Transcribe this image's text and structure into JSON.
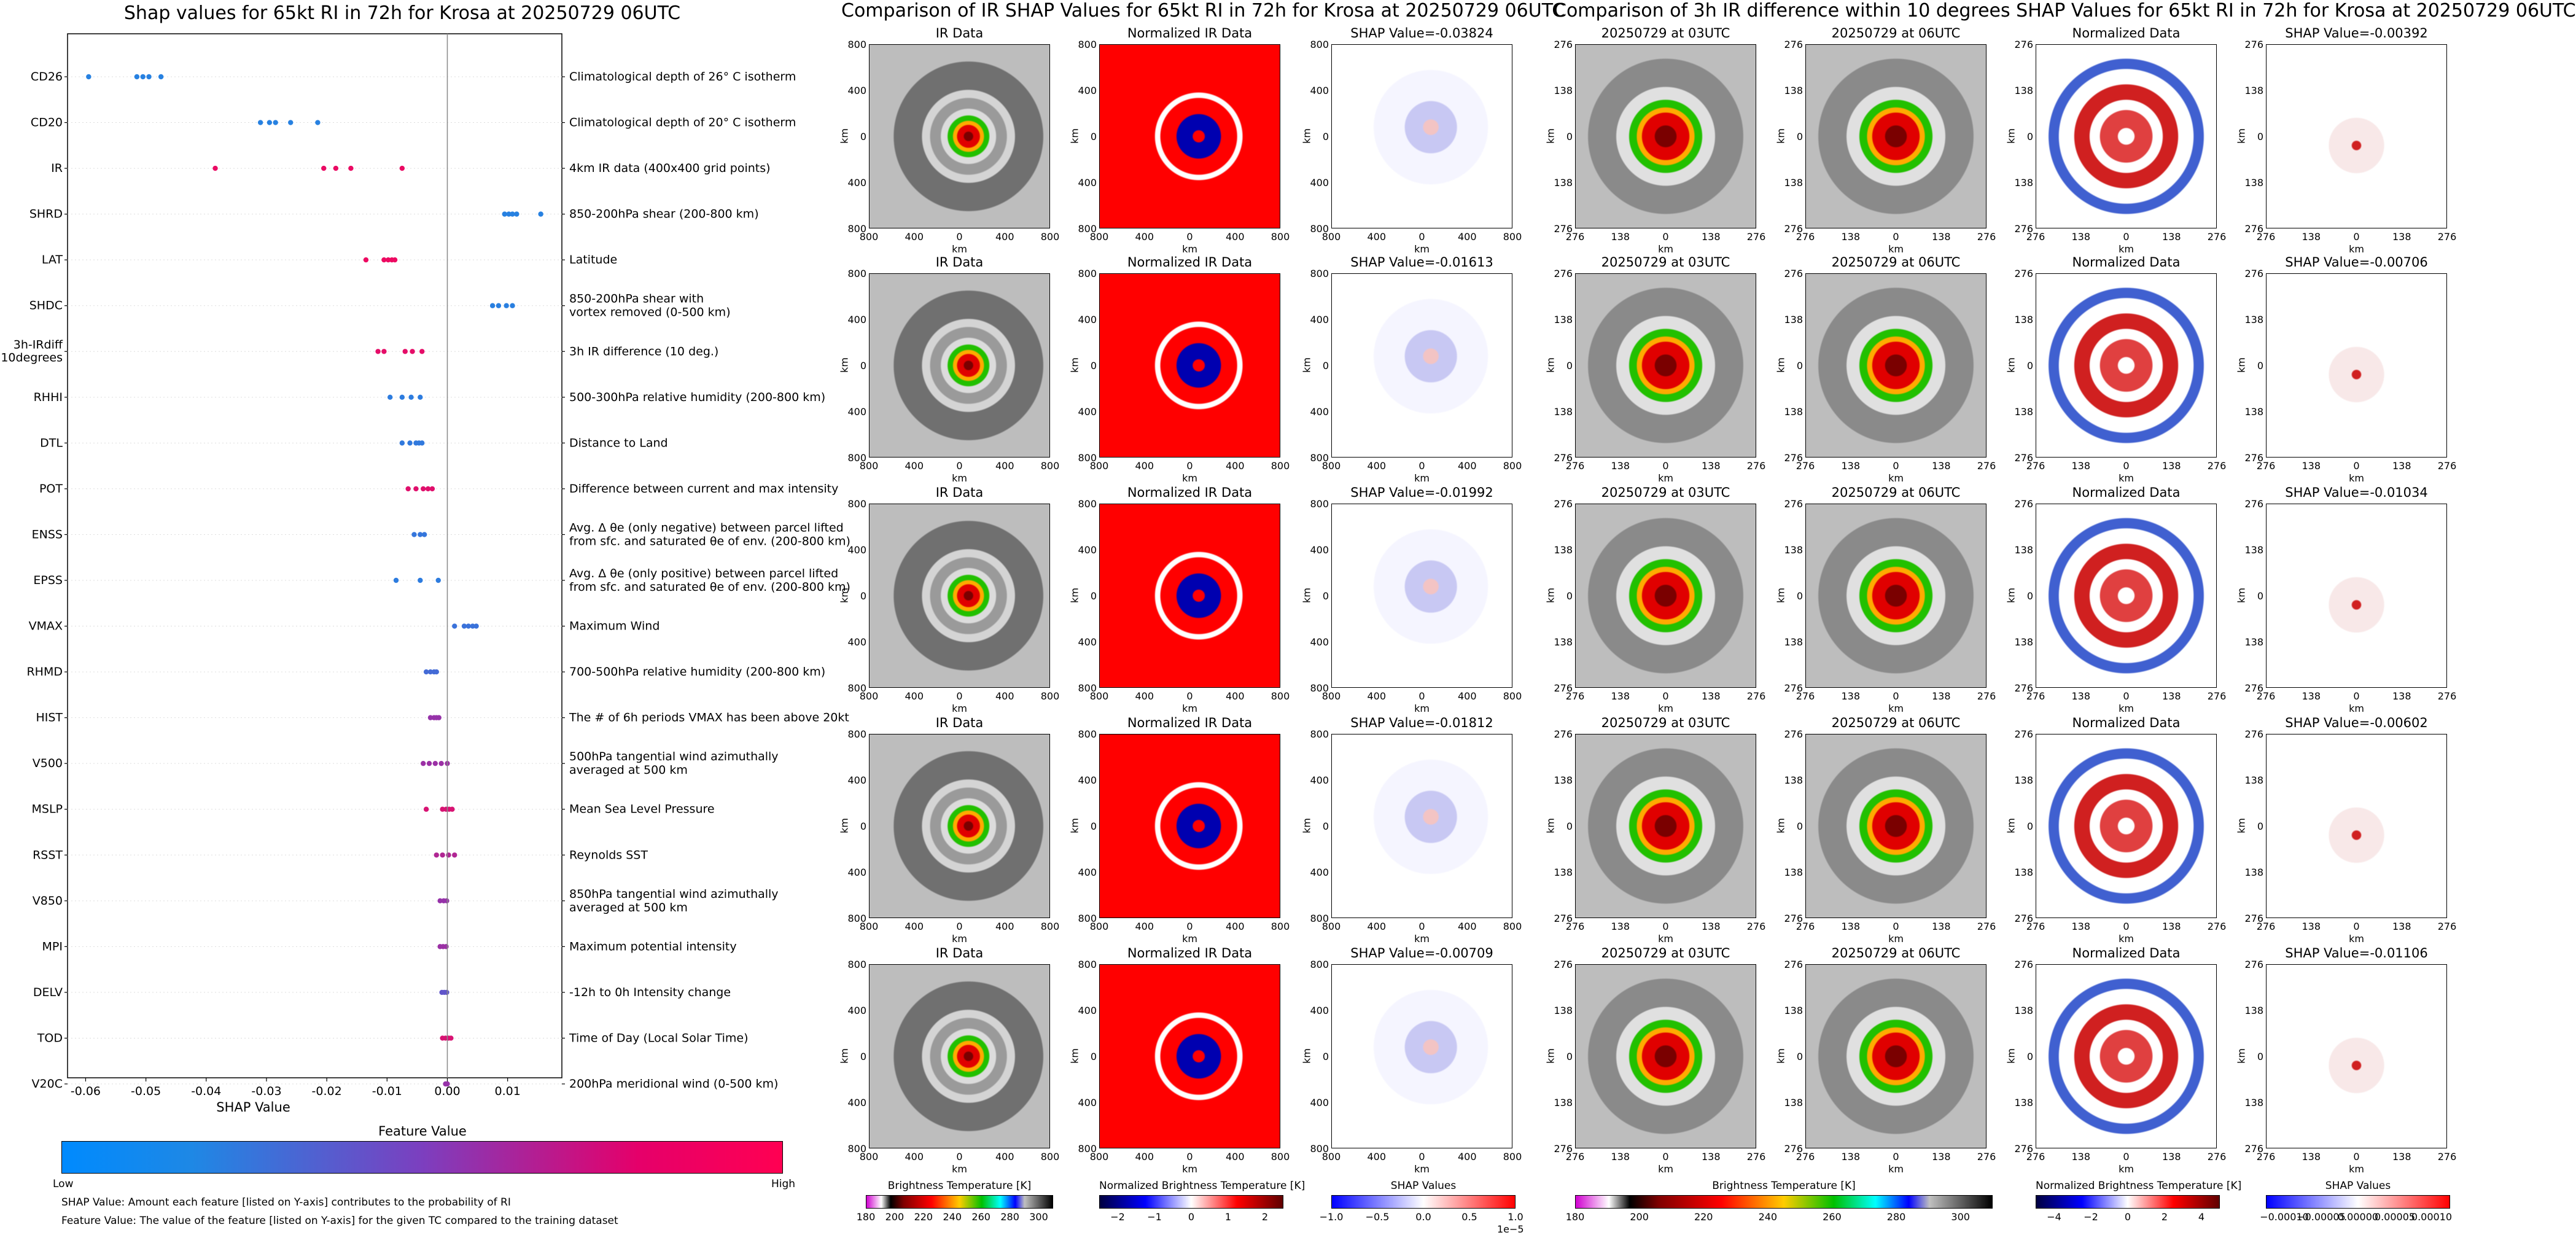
{
  "shap_summary": {
    "title": "Shap values for 65kt RI in 72h for Krosa at 20250729 06UTC",
    "xlabel": "SHAP Value",
    "colorbar_title": "Feature Value",
    "colorbar_low": "Low",
    "colorbar_high": "High",
    "footnote1": "SHAP Value: Amount each feature [listed on Y-axis] contributes to the probability of RI",
    "footnote2": "Feature Value: The value of the feature [listed on Y-axis] for the given TC compared to the training dataset",
    "colors": {
      "low": "#1e88e5",
      "mid": "#7c3fbf",
      "high": "#ff0052"
    }
  },
  "chart_data": [
    {
      "type": "scatter",
      "title": "Shap values for 65kt RI in 72h for Krosa at 20250729 06UTC",
      "xlabel": "SHAP Value",
      "xlim": [
        -0.063,
        0.019
      ],
      "xticks": [
        "-0.06",
        "-0.05",
        "-0.04",
        "-0.03",
        "-0.02",
        "-0.01",
        "0.00",
        "0.01"
      ],
      "xtick_values": [
        -0.06,
        -0.05,
        -0.04,
        -0.03,
        -0.02,
        -0.01,
        0.0,
        0.01
      ],
      "features": [
        {
          "name": "CD26",
          "desc": "Climatological depth of 26° C isotherm",
          "points": [
            -0.0595,
            -0.0515,
            -0.0505,
            -0.0495,
            -0.0475
          ],
          "fv": 0.05
        },
        {
          "name": "CD20",
          "desc": "Climatological depth of 20° C isotherm",
          "points": [
            -0.031,
            -0.0295,
            -0.0285,
            -0.026,
            -0.0215
          ],
          "fv": 0.05
        },
        {
          "name": "IR",
          "desc": "4km IR data (400x400 grid points)",
          "points": [
            -0.0385,
            -0.0205,
            -0.0185,
            -0.016,
            -0.0075
          ],
          "fv": 0.92
        },
        {
          "name": "SHRD",
          "desc": "850-200hPa shear (200-800 km)",
          "points": [
            0.0095,
            0.0102,
            0.0108,
            0.0115,
            0.0155
          ],
          "fv": 0.05
        },
        {
          "name": "LAT",
          "desc": "Latitude",
          "points": [
            -0.0135,
            -0.0105,
            -0.0098,
            -0.0092,
            -0.0087
          ],
          "fv": 0.93
        },
        {
          "name": "SHDC",
          "desc": "850-200hPa shear with\nvortex removed (0-500 km)",
          "points": [
            0.0075,
            0.0085,
            0.0098,
            0.0108
          ],
          "fv": 0.06
        },
        {
          "name": "3h-IRdiff\n10degrees",
          "desc": "3h IR difference (10 deg.)",
          "points": [
            -0.0115,
            -0.0105,
            -0.007,
            -0.0058,
            -0.0042
          ],
          "fv": 0.9
        },
        {
          "name": "RHHI",
          "desc": "500-300hPa relative humidity (200-800 km)",
          "points": [
            -0.0095,
            -0.0075,
            -0.006,
            -0.0045
          ],
          "fv": 0.08
        },
        {
          "name": "DTL",
          "desc": "Distance to Land",
          "points": [
            -0.0075,
            -0.0062,
            -0.0052,
            -0.0047,
            -0.0042
          ],
          "fv": 0.1
        },
        {
          "name": "POT",
          "desc": "Difference between current and max intensity",
          "points": [
            -0.0065,
            -0.0052,
            -0.004,
            -0.0032,
            -0.0025
          ],
          "fv": 0.88
        },
        {
          "name": "ENSS",
          "desc": "Avg. Δ θe (only negative) between parcel lifted\nfrom sfc. and saturated θe of env. (200-800 km)",
          "points": [
            -0.0055,
            -0.0045,
            -0.0038
          ],
          "fv": 0.12
        },
        {
          "name": "EPSS",
          "desc": "Avg. Δ θe (only positive) between parcel lifted\nfrom sfc. and saturated θe of env. (200-800 km)",
          "points": [
            -0.0085,
            -0.0045,
            -0.0015
          ],
          "fv": 0.08
        },
        {
          "name": "VMAX",
          "desc": "Maximum Wind",
          "points": [
            0.0012,
            0.0028,
            0.0035,
            0.0042,
            0.0048
          ],
          "fv": 0.15
        },
        {
          "name": "RHMD",
          "desc": "700-500hPa relative humidity (200-800 km)",
          "points": [
            -0.0035,
            -0.0028,
            -0.0022,
            -0.0018
          ],
          "fv": 0.2
        },
        {
          "name": "HIST",
          "desc": "The # of 6h periods VMAX has been above 20kt",
          "points": [
            -0.0028,
            -0.0022,
            -0.0018,
            -0.0014
          ],
          "fv": 0.6
        },
        {
          "name": "V500",
          "desc": "500hPa tangential wind azimuthally\naveraged at 500 km",
          "points": [
            -0.004,
            -0.003,
            -0.002,
            -0.001,
            0.0
          ],
          "fv": 0.62
        },
        {
          "name": "MSLP",
          "desc": "Mean Sea Level Pressure",
          "points": [
            -0.0035,
            -0.0008,
            -0.0002,
            0.0003,
            0.0008
          ],
          "fv": 0.85
        },
        {
          "name": "RSST",
          "desc": "Reynolds SST",
          "points": [
            -0.0018,
            -0.0008,
            0.0002,
            0.0012
          ],
          "fv": 0.7
        },
        {
          "name": "V850",
          "desc": "850hPa tangential wind azimuthally\naveraged at 500 km",
          "points": [
            -0.0012,
            -0.0006,
            -0.0001
          ],
          "fv": 0.6
        },
        {
          "name": "MPI",
          "desc": "Maximum potential intensity",
          "points": [
            -0.0012,
            -0.0007,
            -0.0002
          ],
          "fv": 0.62
        },
        {
          "name": "DELV",
          "desc": "-12h to 0h Intensity change",
          "points": [
            -0.0009,
            -0.0005,
            -0.0001
          ],
          "fv": 0.35
        },
        {
          "name": "TOD",
          "desc": "Time of Day (Local Solar Time)",
          "points": [
            -0.0008,
            -0.0003,
            0.0002,
            0.0006
          ],
          "fv": 0.85
        },
        {
          "name": "V20C",
          "desc": "200hPa meridional wind (0-500 km)",
          "points": [
            -0.0003,
            0.0
          ],
          "fv": 0.6
        }
      ]
    },
    {
      "type": "heatmap",
      "title": "Comparison of IR SHAP Values for 65kt RI in 72h for Krosa at 20250729 06UTC",
      "columns": [
        "IR Data",
        "Normalized IR Data"
      ],
      "shap_titles": [
        "SHAP Value=-0.03824",
        "SHAP Value=-0.01613",
        "SHAP Value=-0.01992",
        "SHAP Value=-0.01812",
        "SHAP Value=-0.00709"
      ],
      "xticks": [
        "800",
        "400",
        "0",
        "400",
        "800"
      ],
      "yticks": [
        "800",
        "400",
        "0",
        "400",
        "800"
      ],
      "axis_label": "km",
      "colorbars": [
        {
          "label": "Brightness Temperature [K]",
          "ticks": [
            "180",
            "200",
            "220",
            "240",
            "260",
            "280",
            "300"
          ],
          "range": [
            180,
            310
          ]
        },
        {
          "label": "Normalized Brightness Temperature [K]",
          "ticks": [
            "−2",
            "−1",
            "0",
            "1",
            "2"
          ],
          "range": [
            -2.5,
            2.5
          ]
        },
        {
          "label": "SHAP Values",
          "ticks": [
            "−1.0",
            "−0.5",
            "0.0",
            "0.5",
            "1.0"
          ],
          "range": [
            -1.0,
            1.0
          ],
          "multiplier": "1e−5"
        }
      ]
    },
    {
      "type": "heatmap",
      "title": "Comparison of 3h IR difference within 10 degrees SHAP Values for 65kt RI in 72h for Krosa at 20250729 06UTC",
      "columns": [
        "20250729 at 03UTC",
        "20250729 at 06UTC",
        "Normalized Data"
      ],
      "shap_titles": [
        "SHAP Value=-0.00392",
        "SHAP Value=-0.00706",
        "SHAP Value=-0.01034",
        "SHAP Value=-0.00602",
        "SHAP Value=-0.01106"
      ],
      "xticks": [
        "276",
        "138",
        "0",
        "138",
        "276"
      ],
      "yticks": [
        "276",
        "138",
        "0",
        "138",
        "276"
      ],
      "axis_label": "km",
      "colorbars": [
        {
          "label": "Brightness Temperature [K]",
          "ticks": [
            "180",
            "200",
            "220",
            "240",
            "260",
            "280",
            "300"
          ],
          "range": [
            180,
            310
          ]
        },
        {
          "label": "Normalized Brightness Temperature [K]",
          "ticks": [
            "−4",
            "−2",
            "0",
            "2",
            "4"
          ],
          "range": [
            -4.5,
            4.5
          ]
        },
        {
          "label": "SHAP Values",
          "ticks": [
            "−0.00010",
            "−0.00005",
            "0.00000",
            "0.00005",
            "0.00010"
          ],
          "range": [
            -0.00012,
            0.00012
          ]
        }
      ]
    }
  ]
}
